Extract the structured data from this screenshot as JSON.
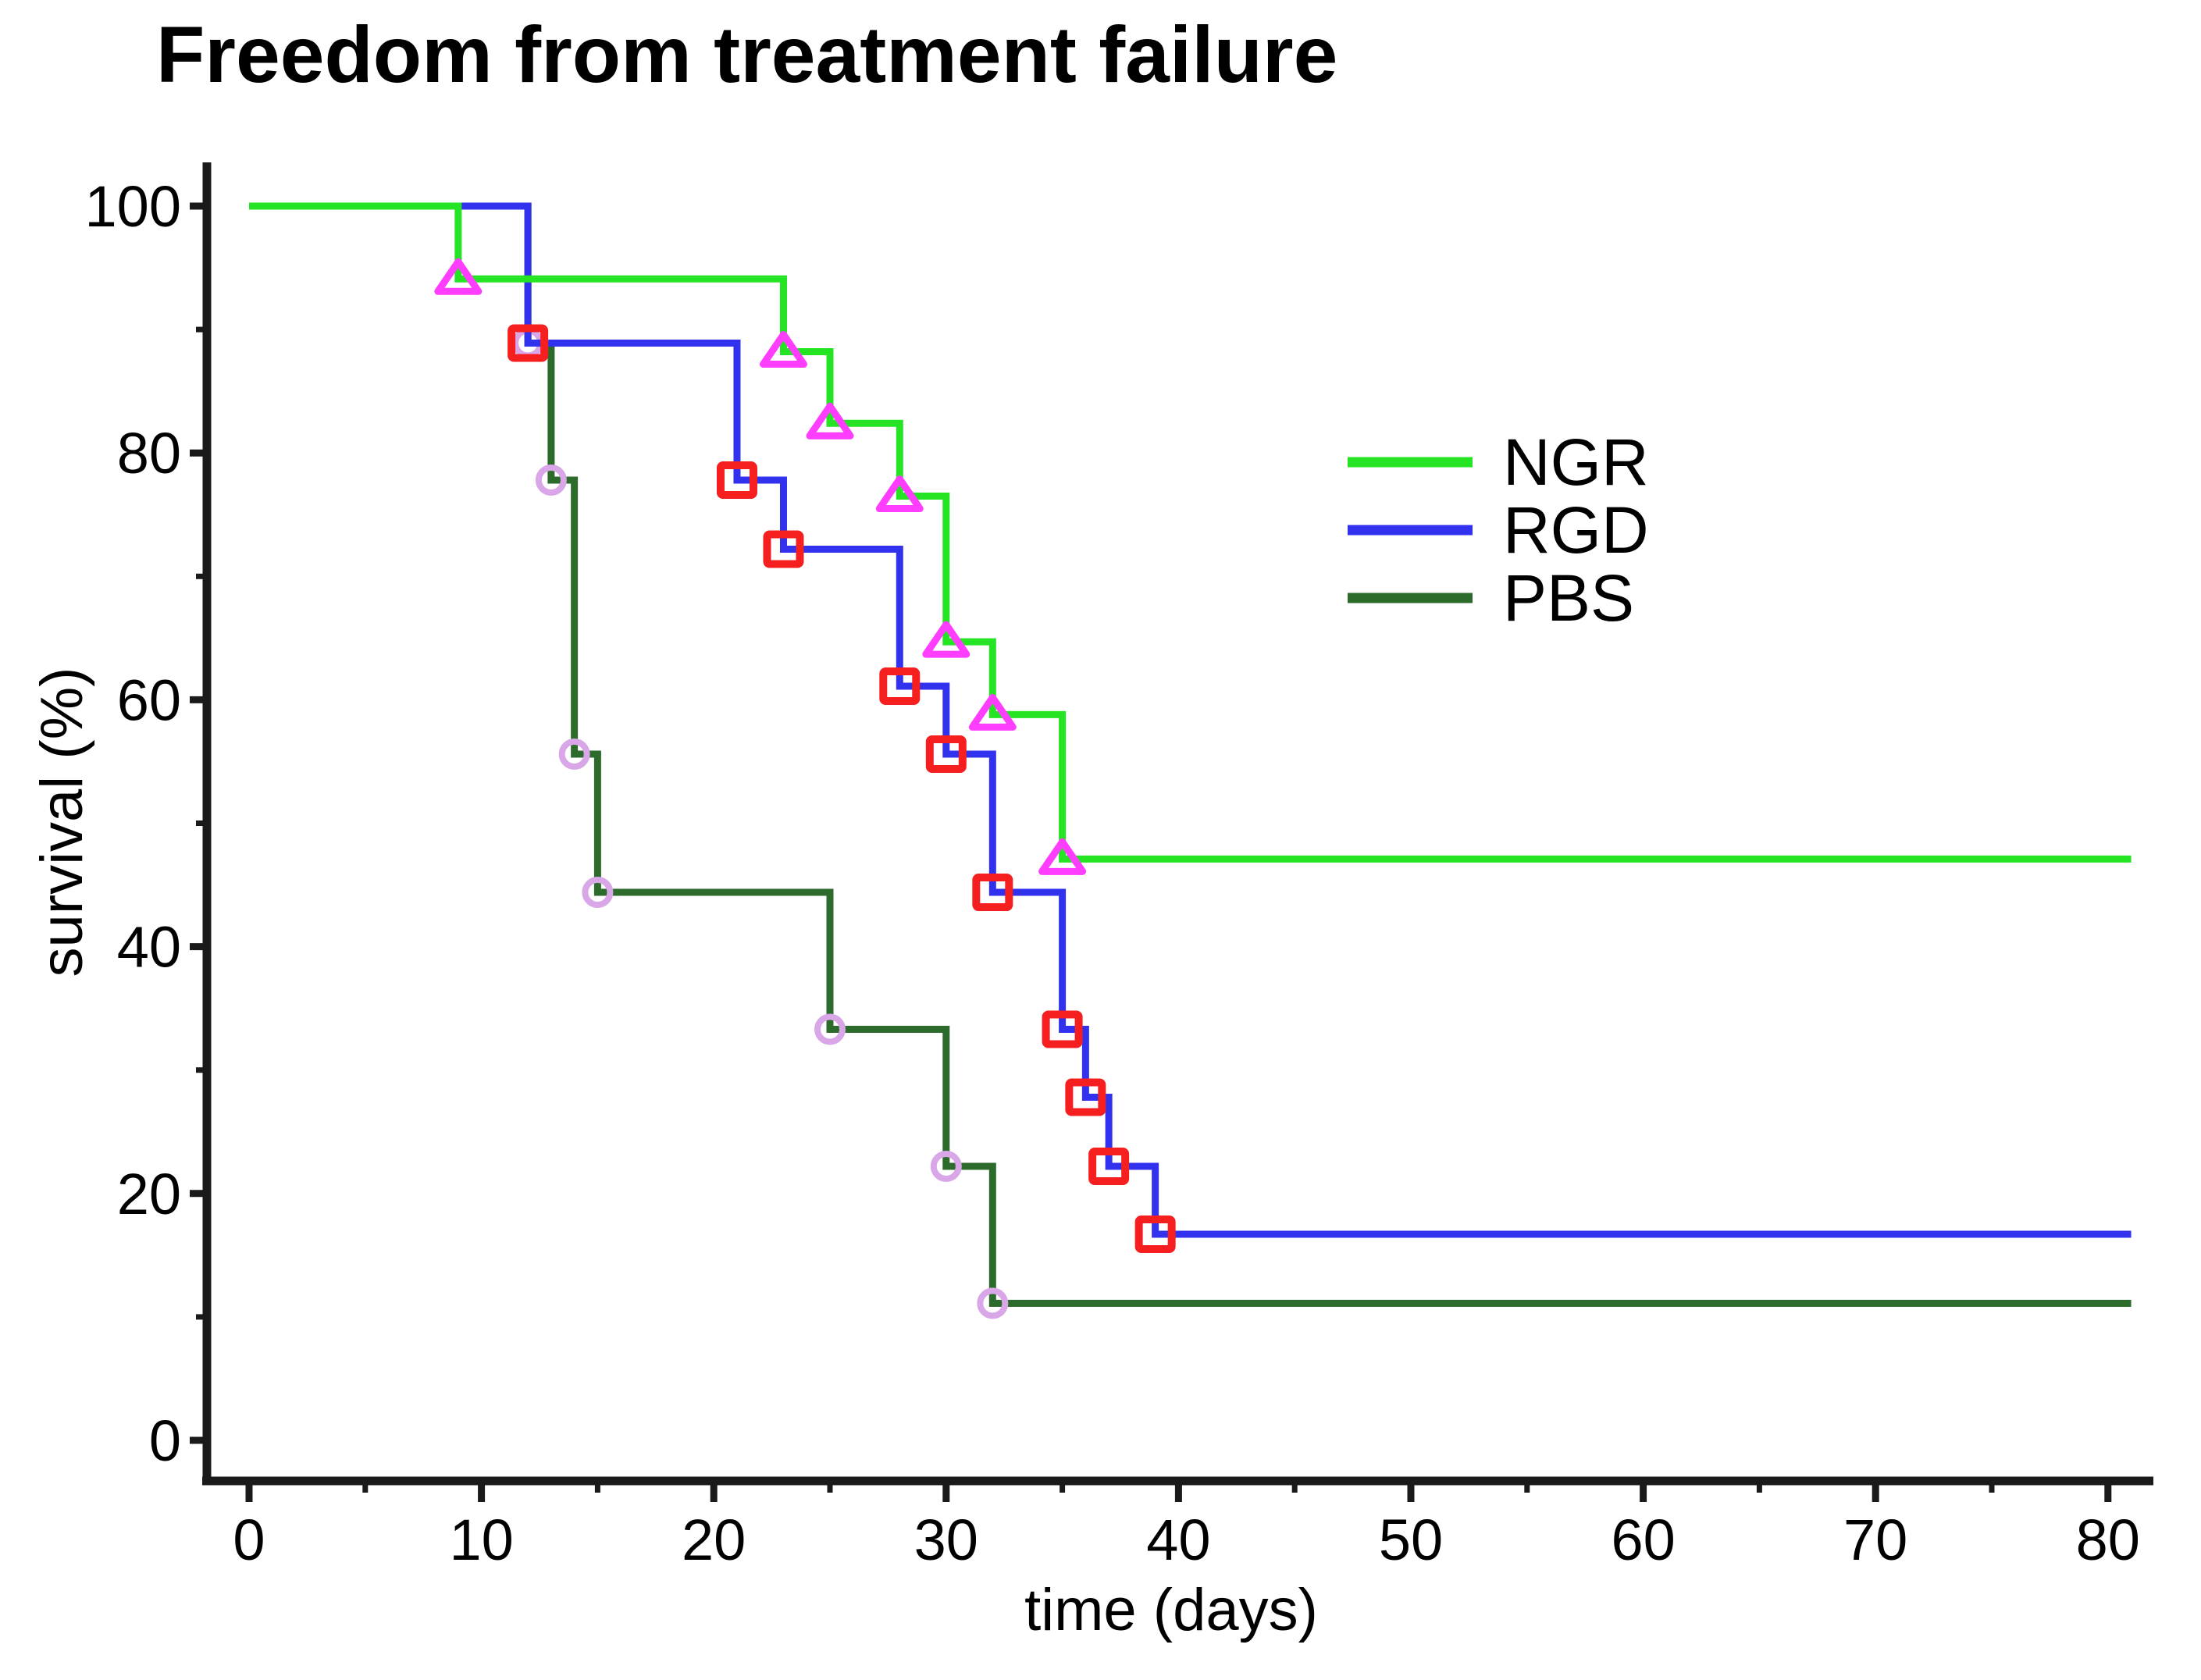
{
  "title": "Freedom from treatment failure",
  "chart_data": {
    "type": "line",
    "subtype": "kaplan-meier-step",
    "title": "Freedom from treatment failure",
    "xlabel": "time (days)",
    "ylabel": "survival (%)",
    "xlim": [
      0,
      82
    ],
    "ylim": [
      0,
      100
    ],
    "x_major_ticks": [
      0,
      10,
      20,
      30,
      40,
      50,
      60,
      70,
      80
    ],
    "x_minor_ticks": [
      5,
      15,
      25,
      35,
      45,
      55,
      65,
      75
    ],
    "y_major_ticks": [
      0,
      20,
      40,
      60,
      80,
      100
    ],
    "y_minor_ticks": [
      10,
      30,
      50,
      70,
      90
    ],
    "grid": false,
    "legend_position": "upper-right-inside",
    "curve_end_day": 81,
    "series": [
      {
        "name": "NGR",
        "color": "#24E424",
        "marker": "triangle",
        "marker_color": "#FF3DFF",
        "steps": [
          [
            0,
            100
          ],
          [
            9,
            94.1
          ],
          [
            23,
            88.2
          ],
          [
            25,
            82.4
          ],
          [
            28,
            76.5
          ],
          [
            30,
            64.7
          ],
          [
            32,
            58.8
          ],
          [
            35,
            47.1
          ]
        ],
        "final_percent": 47.1
      },
      {
        "name": "RGD",
        "color": "#3232EE",
        "marker": "square",
        "marker_color": "#F51F1F",
        "steps": [
          [
            0,
            100
          ],
          [
            12,
            88.9
          ],
          [
            21,
            77.8
          ],
          [
            23,
            72.2
          ],
          [
            28,
            61.1
          ],
          [
            30,
            55.6
          ],
          [
            32,
            44.4
          ],
          [
            35,
            33.3
          ],
          [
            36,
            27.8
          ],
          [
            37,
            22.2
          ],
          [
            39,
            16.7
          ]
        ],
        "final_percent": 16.7
      },
      {
        "name": "PBS",
        "color": "#2C6B2C",
        "marker": "circle",
        "marker_color": "#D9A6E8",
        "steps": [
          [
            0,
            100
          ],
          [
            12,
            88.9
          ],
          [
            13,
            77.8
          ],
          [
            14,
            55.6
          ],
          [
            15,
            44.4
          ],
          [
            25,
            33.3
          ],
          [
            30,
            22.2
          ],
          [
            32,
            11.1
          ]
        ],
        "final_percent": 11.1
      }
    ]
  }
}
